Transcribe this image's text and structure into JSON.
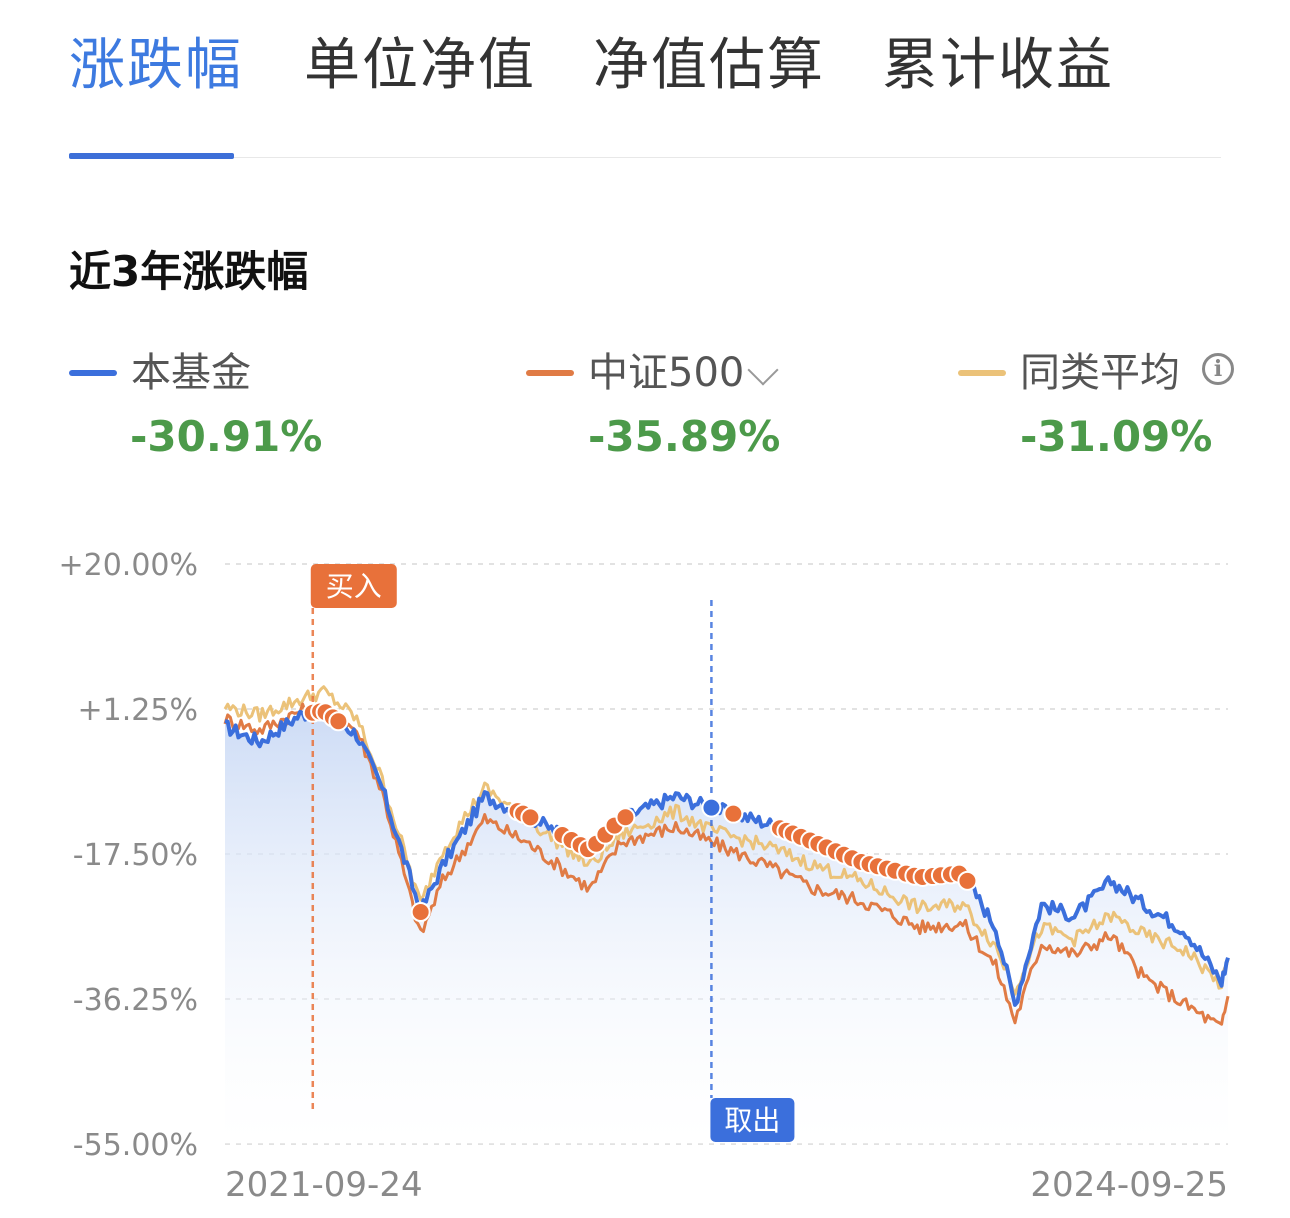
{
  "tabs": [
    {
      "label": "涨跌幅",
      "active": true
    },
    {
      "label": "单位净值",
      "active": false
    },
    {
      "label": "净值估算",
      "active": false
    },
    {
      "label": "累计收益",
      "active": false
    }
  ],
  "section_title": "近3年涨跌幅",
  "legend": [
    {
      "label": "本基金",
      "value": "-30.91%",
      "color": "#3b6fdc"
    },
    {
      "label": "中证500",
      "value": "-35.89%",
      "color": "#e07b45",
      "has_dropdown": true
    },
    {
      "label": "同类平均",
      "value": "-31.09%",
      "color": "#ebc279",
      "has_info": true
    }
  ],
  "icons": {
    "dropdown": "chevron-down-icon",
    "info": "info-icon"
  },
  "colors": {
    "accent": "#3d7ae0",
    "fund": "#3b6fdc",
    "index": "#e07b45",
    "peer": "#ebc279",
    "gain_loss_value": "#4c9a4a",
    "buy_marker": "#e8713a",
    "sell_marker": "#3b6fdc"
  },
  "chart_data": {
    "type": "line",
    "yticks": [
      "+20.00%",
      "+1.25%",
      "-17.50%",
      "-36.25%",
      "-55.00%"
    ],
    "ylim": [
      -55.0,
      20.0
    ],
    "xlim": [
      "2021-09-24",
      "2024-09-25"
    ],
    "x_labels": [
      "2021-09-24",
      "2024-09-25"
    ],
    "grid": true,
    "series": [
      {
        "name": "本基金",
        "color": "#3b6fdc",
        "x": [
          "2021-09-24",
          "2021-11-01",
          "2021-12-15",
          "2022-01-10",
          "2022-02-15",
          "2022-03-15",
          "2022-04-26",
          "2022-05-20",
          "2022-07-05",
          "2022-08-20",
          "2022-10-28",
          "2022-12-01",
          "2023-01-30",
          "2023-03-10",
          "2023-05-10",
          "2023-07-01",
          "2023-08-20",
          "2023-10-24",
          "2023-12-10",
          "2024-01-15",
          "2024-02-05",
          "2024-03-05",
          "2024-04-10",
          "2024-05-20",
          "2024-06-25",
          "2024-08-10",
          "2024-09-18",
          "2024-09-25"
        ],
        "values": [
          -1.0,
          -3.0,
          0.5,
          1.0,
          -2.0,
          -9.0,
          -25.0,
          -19.0,
          -10.0,
          -12.5,
          -17.0,
          -13.0,
          -10.0,
          -11.5,
          -13.5,
          -16.0,
          -18.5,
          -20.5,
          -20.0,
          -27.0,
          -37.0,
          -24.0,
          -25.5,
          -21.0,
          -24.0,
          -27.5,
          -34.0,
          -30.91
        ]
      },
      {
        "name": "中证500",
        "color": "#e07b45",
        "x": [
          "2021-09-24",
          "2021-11-01",
          "2021-12-15",
          "2022-01-10",
          "2022-02-15",
          "2022-03-15",
          "2022-04-26",
          "2022-05-20",
          "2022-07-05",
          "2022-08-20",
          "2022-10-28",
          "2022-12-01",
          "2023-01-30",
          "2023-03-10",
          "2023-05-10",
          "2023-07-01",
          "2023-08-20",
          "2023-10-24",
          "2023-12-10",
          "2024-01-15",
          "2024-02-05",
          "2024-03-05",
          "2024-04-10",
          "2024-05-20",
          "2024-06-25",
          "2024-08-10",
          "2024-09-18",
          "2024-09-25"
        ],
        "values": [
          0.0,
          -1.5,
          1.0,
          1.5,
          -1.5,
          -9.5,
          -28.0,
          -21.0,
          -13.0,
          -16.0,
          -22.0,
          -16.0,
          -14.0,
          -16.0,
          -19.0,
          -22.0,
          -23.5,
          -27.0,
          -26.5,
          -32.0,
          -39.0,
          -29.0,
          -30.5,
          -28.0,
          -33.5,
          -37.0,
          -40.0,
          -35.89
        ]
      },
      {
        "name": "同类平均",
        "color": "#ebc279",
        "x": [
          "2021-09-24",
          "2021-11-01",
          "2021-12-15",
          "2022-01-10",
          "2022-02-15",
          "2022-03-15",
          "2022-04-26",
          "2022-05-20",
          "2022-07-05",
          "2022-08-20",
          "2022-10-28",
          "2022-12-01",
          "2023-01-30",
          "2023-03-10",
          "2023-05-10",
          "2023-07-01",
          "2023-08-20",
          "2023-10-24",
          "2023-12-10",
          "2024-01-15",
          "2024-02-05",
          "2024-03-05",
          "2024-04-10",
          "2024-05-20",
          "2024-06-25",
          "2024-08-10",
          "2024-09-18",
          "2024-09-25"
        ],
        "values": [
          1.5,
          0.5,
          2.5,
          3.5,
          0.0,
          -8.0,
          -24.0,
          -17.0,
          -9.0,
          -13.0,
          -19.0,
          -15.0,
          -12.0,
          -14.5,
          -16.5,
          -19.0,
          -21.0,
          -24.5,
          -24.0,
          -29.5,
          -35.0,
          -27.0,
          -28.5,
          -25.5,
          -28.0,
          -30.0,
          -34.5,
          -31.09
        ]
      }
    ],
    "annotations": [
      {
        "label": "买入",
        "x": "2021-12-29",
        "type": "buy",
        "color": "#e8713a"
      },
      {
        "label": "取出",
        "x": "2023-03-10",
        "type": "sell",
        "color": "#3b6fdc"
      }
    ],
    "trade_points": [
      {
        "x": "2021-12-29",
        "type": "buy"
      },
      {
        "x": "2022-01-06",
        "type": "buy"
      },
      {
        "x": "2022-01-12",
        "type": "buy"
      },
      {
        "x": "2022-01-20",
        "type": "buy"
      },
      {
        "x": "2022-01-26",
        "type": "buy"
      },
      {
        "x": "2022-04-26",
        "type": "buy"
      },
      {
        "x": "2022-08-10",
        "type": "buy"
      },
      {
        "x": "2022-08-16",
        "type": "buy"
      },
      {
        "x": "2022-08-24",
        "type": "buy"
      },
      {
        "x": "2022-09-28",
        "type": "buy"
      },
      {
        "x": "2022-10-08",
        "type": "buy"
      },
      {
        "x": "2022-10-18",
        "type": "buy"
      },
      {
        "x": "2022-10-26",
        "type": "buy"
      },
      {
        "x": "2022-11-04",
        "type": "buy"
      },
      {
        "x": "2022-11-14",
        "type": "buy"
      },
      {
        "x": "2022-11-24",
        "type": "buy"
      },
      {
        "x": "2022-12-06",
        "type": "buy"
      },
      {
        "x": "2023-03-10",
        "type": "sell"
      },
      {
        "x": "2023-04-03",
        "type": "buy"
      },
      {
        "x": "2023-05-24",
        "type": "buy"
      },
      {
        "x": "2023-05-31",
        "type": "buy"
      },
      {
        "x": "2023-06-07",
        "type": "buy"
      },
      {
        "x": "2023-06-16",
        "type": "buy"
      },
      {
        "x": "2023-06-26",
        "type": "buy"
      },
      {
        "x": "2023-07-05",
        "type": "buy"
      },
      {
        "x": "2023-07-14",
        "type": "buy"
      },
      {
        "x": "2023-07-24",
        "type": "buy"
      },
      {
        "x": "2023-08-02",
        "type": "buy"
      },
      {
        "x": "2023-08-11",
        "type": "buy"
      },
      {
        "x": "2023-08-21",
        "type": "buy"
      },
      {
        "x": "2023-08-30",
        "type": "buy"
      },
      {
        "x": "2023-09-08",
        "type": "buy"
      },
      {
        "x": "2023-09-18",
        "type": "buy"
      },
      {
        "x": "2023-09-27",
        "type": "buy"
      },
      {
        "x": "2023-10-09",
        "type": "buy"
      },
      {
        "x": "2023-10-18",
        "type": "buy"
      },
      {
        "x": "2023-10-27",
        "type": "buy"
      },
      {
        "x": "2023-11-07",
        "type": "buy"
      },
      {
        "x": "2023-11-16",
        "type": "buy"
      },
      {
        "x": "2023-11-27",
        "type": "buy"
      },
      {
        "x": "2023-12-06",
        "type": "buy"
      },
      {
        "x": "2023-12-15",
        "type": "buy"
      }
    ]
  }
}
